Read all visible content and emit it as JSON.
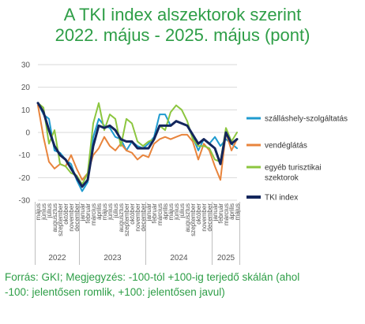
{
  "chart_data": {
    "type": "line",
    "title_lines": [
      "A TKI index alszektorok szerint",
      "2022. május - 2025. május (pont)"
    ],
    "ylim": [
      -30,
      30
    ],
    "yticks": [
      30,
      20,
      10,
      0,
      -10,
      -20,
      -30
    ],
    "x": [
      "május",
      "június",
      "július",
      "augusztus",
      "szeptember",
      "október",
      "november",
      "december",
      "január",
      "február",
      "március",
      "április",
      "május",
      "június",
      "július",
      "augusztus",
      "szeptember",
      "október",
      "november",
      "december",
      "január",
      "február",
      "március",
      "április",
      "május",
      "június",
      "július",
      "augusztus",
      "szeptember",
      "október",
      "november",
      "december",
      "január",
      "február",
      "március",
      "április",
      "május"
    ],
    "years": [
      {
        "label": "2022",
        "start": 0,
        "end": 7
      },
      {
        "label": "2023",
        "start": 8,
        "end": 19
      },
      {
        "label": "2024",
        "start": 20,
        "end": 31
      },
      {
        "label": "2025",
        "start": 32,
        "end": 36
      }
    ],
    "series": [
      {
        "name": "szálláshely-szolgáltatás",
        "color": "#1f9bcf",
        "width": 2,
        "values": [
          13,
          8,
          6,
          -8,
          -9,
          -12,
          -14,
          -21,
          -26,
          -22,
          -2,
          6,
          3,
          2,
          -2,
          -3,
          -8,
          -4,
          -6,
          -7,
          -5,
          -2,
          8,
          8,
          3,
          5,
          4,
          3,
          -2,
          -8,
          -3,
          -5,
          -2,
          -6,
          -3,
          -5,
          -7
        ]
      },
      {
        "name": "vendéglátás",
        "color": "#e8843c",
        "width": 2,
        "values": [
          12,
          -2,
          -13,
          -16,
          -14,
          -15,
          -10,
          -16,
          -21,
          -18,
          -10,
          -7,
          -2,
          -6,
          -8,
          -5,
          -8,
          -9,
          -12,
          -10,
          -11,
          -5,
          -3,
          -2,
          -3,
          -2,
          -1,
          -1,
          -4,
          -12,
          -5,
          -8,
          -15,
          -21,
          0,
          -8,
          -3
        ]
      },
      {
        "name": "egyéb turisztikai szektorok",
        "color": "#8cc63f",
        "width": 2,
        "values": [
          13,
          11,
          -5,
          1,
          -14,
          -15,
          -18,
          -19,
          -23,
          -18,
          4,
          13,
          1,
          8,
          6,
          -6,
          6,
          4,
          -4,
          -6,
          -4,
          -3,
          3,
          1,
          9,
          12,
          10,
          5,
          -3,
          -6,
          -6,
          -7,
          -12,
          -13,
          2,
          -4,
          0
        ]
      },
      {
        "name": "TKI index",
        "color": "#13265c",
        "width": 3,
        "values": [
          13,
          9,
          1,
          -6,
          -10,
          -12,
          -16,
          -20,
          -24,
          -21,
          -6,
          3,
          2,
          3,
          1,
          -3,
          -4,
          -4,
          -7,
          -7,
          -7,
          -3,
          3,
          3,
          3,
          5,
          4,
          3,
          -1,
          -5,
          -3,
          -5,
          -7,
          -14,
          0,
          -5,
          -3
        ]
      }
    ]
  },
  "source_lines": [
    "Forrás: GKI; Megjegyzés: -100-tól +100-ig terjedő skálán (ahol",
    "-100: jelentősen romlik, +100: jelentősen javul)"
  ]
}
